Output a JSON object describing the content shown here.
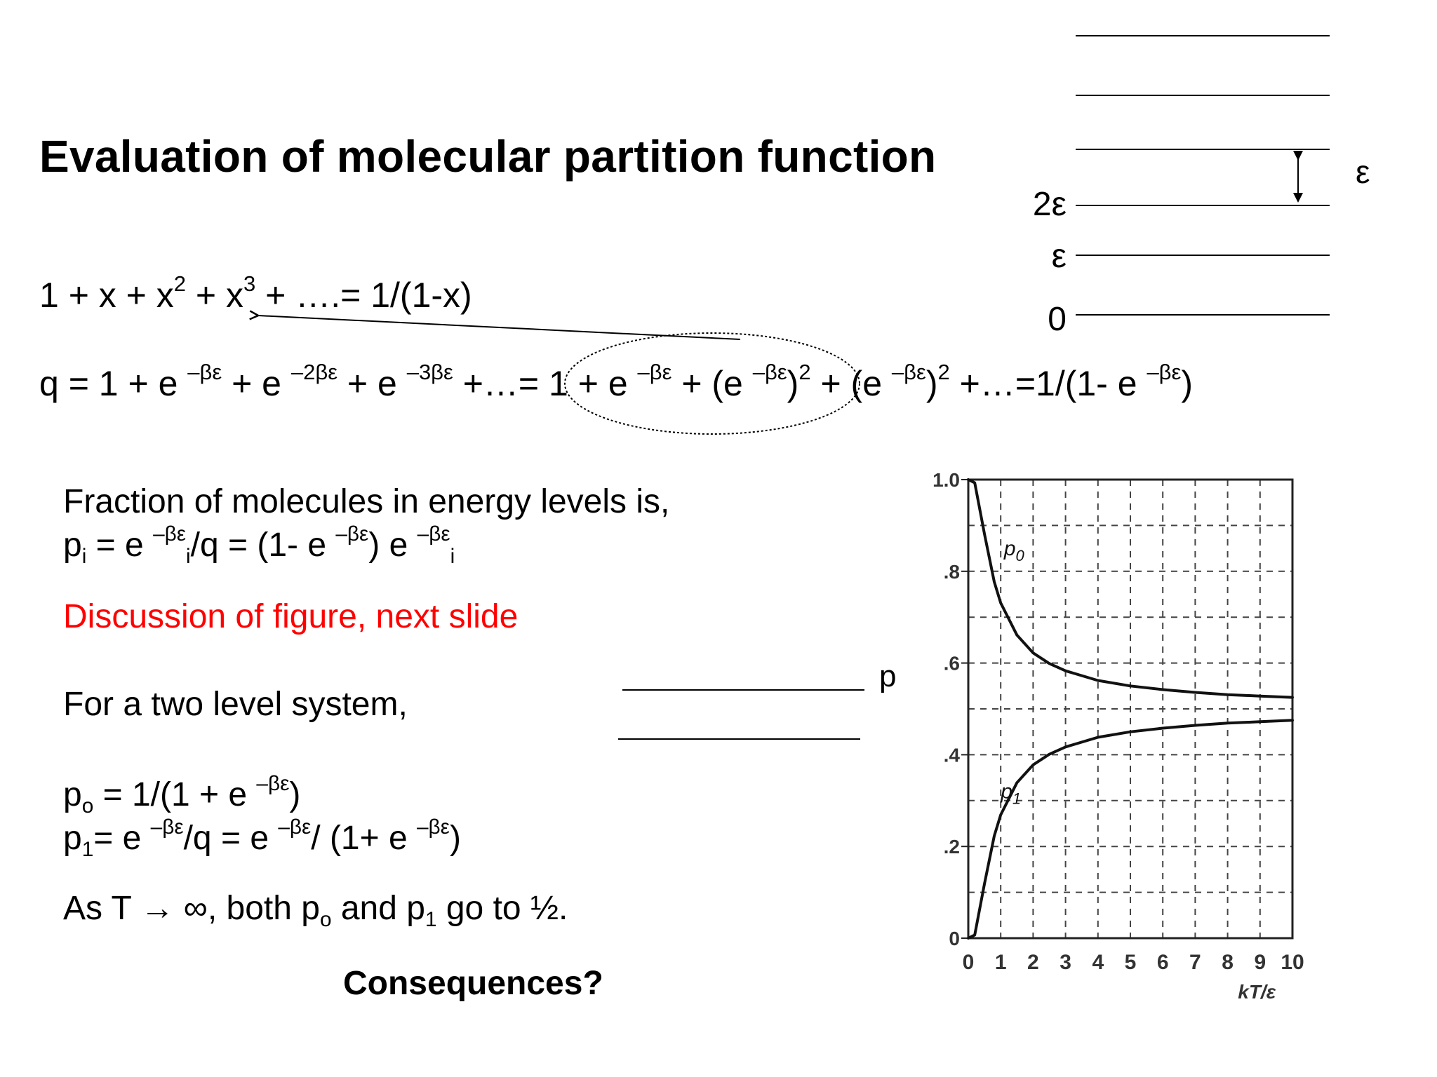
{
  "title": "Evaluation of molecular partition function",
  "equations": {
    "series": {
      "a": "1 + x + x",
      "b": "2",
      "c": " + x",
      "d": "3",
      "e": " + ….= 1/(1-x)"
    },
    "q": {
      "p1": "q = 1 + e ",
      "s1": "–βε",
      "p2": " + e ",
      "s2": "–2βε",
      "p3": " +  e ",
      "s3": "–3βε",
      "p4": " +…= 1 + e ",
      "s4": "–βε",
      "p5": " + (e ",
      "s5": "–βε",
      "p6": ")",
      "s6": "2",
      "p7": " +  (e ",
      "s7": "–βε",
      "p8": ")",
      "s8": "2",
      "p9": " +…=1/(1- e ",
      "s9": "–βε",
      "p10": ")"
    }
  },
  "fraction": {
    "heading": "Fraction of molecules in energy levels is,",
    "pi": {
      "a": "p",
      "a_sub": "i",
      "b": " = e ",
      "b_sup": "–βε",
      "b_sub": "i",
      "c": "/q =  (1- e ",
      "c_sup": "–βε",
      "d": ") e ",
      "d_sup": "–βε",
      "d_sub": "i"
    }
  },
  "discussion": "Discussion of figure, next slide",
  "two_level": {
    "heading": "For a two level system,",
    "po": {
      "a": "p",
      "a_sub": "o",
      "b": " = 1/(1 + e ",
      "b_sup": "–βε",
      "c": ")"
    },
    "p1": {
      "a": "p",
      "a_sub": "1",
      "b": "= e ",
      "b_sup": "–βε",
      "c": "/q =  e ",
      "c_sup": "–βε",
      "d": "/ (1+ e ",
      "d_sup": "–βε",
      "e": ")"
    },
    "limit": {
      "a": "As T ",
      "arrow": "→",
      "b": " ∞, both p",
      "b_sub": "o",
      "c": " and p",
      "c_sub": "1",
      "d": " go to ½."
    }
  },
  "consequences": "Consequences?",
  "levels": {
    "labels": [
      "0",
      "ε",
      "2ε"
    ],
    "spacing_label": "ε"
  },
  "p_label": "p",
  "chart_data": {
    "type": "line",
    "xlabel": "kT/ε",
    "ylabel": "",
    "xlim": [
      0,
      10
    ],
    "ylim": [
      0,
      1.0
    ],
    "x_ticks": [
      "0",
      "1",
      "2",
      "3",
      "4",
      "5",
      "6",
      "7",
      "8",
      "9",
      "10"
    ],
    "y_ticks": [
      {
        "value": 0,
        "label": "0"
      },
      {
        "value": 0.2,
        "label": ".2"
      },
      {
        "value": 0.4,
        "label": ".4"
      },
      {
        "value": 0.6,
        "label": ".6"
      },
      {
        "value": 0.8,
        "label": ".8"
      },
      {
        "value": 1.0,
        "label": "1.0"
      }
    ],
    "grid": true,
    "series": [
      {
        "name": "p0",
        "x": [
          0,
          0.2,
          0.5,
          0.8,
          1,
          1.5,
          2,
          2.5,
          3,
          4,
          5,
          6,
          7,
          8,
          9,
          10
        ],
        "values": [
          1.0,
          0.993,
          0.881,
          0.777,
          0.731,
          0.661,
          0.622,
          0.599,
          0.583,
          0.562,
          0.55,
          0.542,
          0.536,
          0.531,
          0.528,
          0.525
        ]
      },
      {
        "name": "p1",
        "x": [
          0,
          0.2,
          0.5,
          0.8,
          1,
          1.5,
          2,
          2.5,
          3,
          4,
          5,
          6,
          7,
          8,
          9,
          10
        ],
        "values": [
          0.0,
          0.007,
          0.119,
          0.223,
          0.269,
          0.339,
          0.378,
          0.401,
          0.417,
          0.438,
          0.45,
          0.458,
          0.464,
          0.469,
          0.472,
          0.475
        ]
      }
    ],
    "series_labels": [
      {
        "main": "p",
        "sub": "0"
      },
      {
        "main": "p",
        "sub": "1"
      }
    ]
  }
}
